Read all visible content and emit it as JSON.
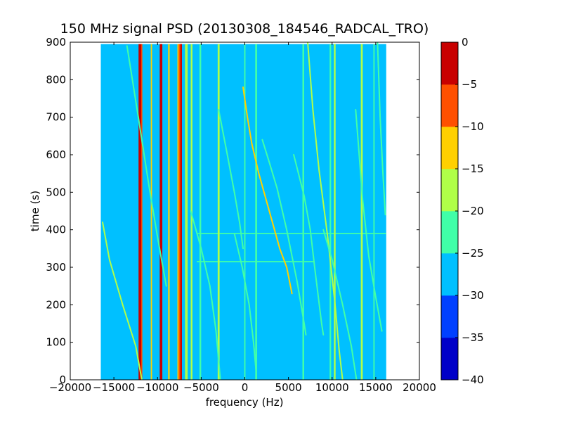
{
  "chart_data": {
    "type": "heatmap",
    "title": "150 MHz signal PSD (20130308_184546_RADCAL_TRO)",
    "xlabel": "frequency (Hz)",
    "ylabel": "time (s)",
    "xlim": [
      -20000,
      20000
    ],
    "ylim": [
      0,
      900
    ],
    "xticks": [
      "−20000",
      "−15000",
      "−10000",
      "−5000",
      "0",
      "5000",
      "10000",
      "15000",
      "20000"
    ],
    "xtick_values": [
      -20000,
      -15000,
      -10000,
      -5000,
      0,
      5000,
      10000,
      15000,
      20000
    ],
    "yticks": [
      "0",
      "100",
      "200",
      "300",
      "400",
      "500",
      "600",
      "700",
      "800",
      "900"
    ],
    "ytick_values": [
      0,
      100,
      200,
      300,
      400,
      500,
      600,
      700,
      800,
      900
    ],
    "data_extent": {
      "freq": [
        -16500,
        16200
      ],
      "time": [
        0,
        895
      ]
    },
    "background_level_db": -27.5,
    "colorbar": {
      "levels": [
        -40,
        -35,
        -30,
        -25,
        -20,
        -15,
        -10,
        -5,
        0
      ],
      "tick_labels": [
        "−40",
        "−35",
        "−30",
        "−25",
        "−20",
        "−15",
        "−10",
        "−5",
        "0"
      ],
      "colors": [
        "#0000c8",
        "#0040ff",
        "#00c0ff",
        "#40ffa8",
        "#b0ff48",
        "#ffd000",
        "#ff5000",
        "#c80000"
      ]
    },
    "vertical_lines": [
      {
        "freq": -12000,
        "db": -2.5,
        "width": 350
      },
      {
        "freq": -11800,
        "db": -7.5,
        "width": 120
      },
      {
        "freq": -10700,
        "db": -12.5,
        "width": 150
      },
      {
        "freq": -9600,
        "db": -2.5,
        "width": 300
      },
      {
        "freq": -8700,
        "db": -12.5,
        "width": 180
      },
      {
        "freq": -7600,
        "db": -12.5,
        "width": 250
      },
      {
        "freq": -7400,
        "db": -7.5,
        "width": 380
      },
      {
        "freq": -7300,
        "db": -2.5,
        "width": 180
      },
      {
        "freq": -6700,
        "db": -17.5,
        "width": 300
      },
      {
        "freq": -6100,
        "db": -17.5,
        "width": 200
      },
      {
        "freq": -5100,
        "db": -22.5,
        "width": 200
      },
      {
        "freq": -3000,
        "db": -17.5,
        "width": 220
      },
      {
        "freq": 0,
        "db": -22.5,
        "width": 150
      },
      {
        "freq": 1300,
        "db": -22.5,
        "width": 220
      },
      {
        "freq": 6700,
        "db": -22.5,
        "width": 200
      },
      {
        "freq": 9800,
        "db": -22.5,
        "width": 180
      },
      {
        "freq": 10300,
        "db": -17.5,
        "width": 200
      },
      {
        "freq": 13400,
        "db": -17.5,
        "width": 220
      },
      {
        "freq": 14800,
        "db": -22.5,
        "width": 150
      }
    ],
    "sweep_traces": [
      {
        "db": -17.5,
        "points": [
          [
            -16300,
            420
          ],
          [
            -15500,
            320
          ],
          [
            -14000,
            200
          ],
          [
            -12500,
            90
          ],
          [
            -11800,
            0
          ]
        ]
      },
      {
        "db": -22.5,
        "points": [
          [
            -13500,
            890
          ],
          [
            -12200,
            700
          ],
          [
            -11000,
            520
          ],
          [
            -10000,
            380
          ],
          [
            -9000,
            250
          ]
        ]
      },
      {
        "db": -22.5,
        "points": [
          [
            -6200,
            450
          ],
          [
            -5000,
            350
          ],
          [
            -4000,
            250
          ],
          [
            -3300,
            130
          ],
          [
            -2800,
            0
          ]
        ]
      },
      {
        "db": -22.5,
        "points": [
          [
            -3000,
            720
          ],
          [
            -2000,
            600
          ],
          [
            -1200,
            500
          ],
          [
            -600,
            420
          ],
          [
            -200,
            350
          ]
        ]
      },
      {
        "db": -22.5,
        "points": [
          [
            -1200,
            390
          ],
          [
            -300,
            300
          ],
          [
            500,
            200
          ],
          [
            1000,
            100
          ],
          [
            1300,
            20
          ]
        ]
      },
      {
        "db": -12.5,
        "points": [
          [
            -200,
            780
          ],
          [
            300,
            700
          ],
          [
            800,
            630
          ],
          [
            1600,
            550
          ],
          [
            2800,
            450
          ],
          [
            4000,
            350
          ],
          [
            4800,
            300
          ],
          [
            5400,
            230
          ]
        ]
      },
      {
        "db": -22.5,
        "points": [
          [
            2000,
            640
          ],
          [
            2800,
            580
          ],
          [
            3700,
            510
          ],
          [
            4800,
            400
          ],
          [
            6000,
            260
          ],
          [
            6800,
            150
          ],
          [
            7000,
            120
          ]
        ]
      },
      {
        "db": -22.5,
        "points": [
          [
            5600,
            600
          ],
          [
            6800,
            490
          ],
          [
            7500,
            400
          ],
          [
            8000,
            300
          ],
          [
            8800,
            150
          ],
          [
            9000,
            120
          ]
        ]
      },
      {
        "db": -17.5,
        "points": [
          [
            7200,
            900
          ],
          [
            7800,
            720
          ],
          [
            8500,
            560
          ],
          [
            9500,
            380
          ],
          [
            10300,
            210
          ],
          [
            10800,
            80
          ],
          [
            11200,
            0
          ]
        ]
      },
      {
        "db": -22.5,
        "points": [
          [
            9000,
            400
          ],
          [
            10000,
            320
          ],
          [
            11200,
            200
          ],
          [
            12200,
            90
          ],
          [
            12800,
            0
          ]
        ]
      },
      {
        "db": -22.5,
        "points": [
          [
            12700,
            720
          ],
          [
            13100,
            600
          ],
          [
            13500,
            480
          ],
          [
            14200,
            330
          ],
          [
            15000,
            220
          ],
          [
            15700,
            130
          ]
        ]
      },
      {
        "db": -22.5,
        "points": [
          [
            15200,
            900
          ],
          [
            15500,
            700
          ],
          [
            15800,
            560
          ],
          [
            16100,
            440
          ]
        ]
      }
    ],
    "horizontal_bands": [
      {
        "time": 390,
        "db": -22.5,
        "from": -5500,
        "to": 16200
      },
      {
        "time": 315,
        "db": -22.5,
        "from": -5500,
        "to": 8000
      }
    ],
    "grid": false,
    "legend": "colorbar-right"
  }
}
